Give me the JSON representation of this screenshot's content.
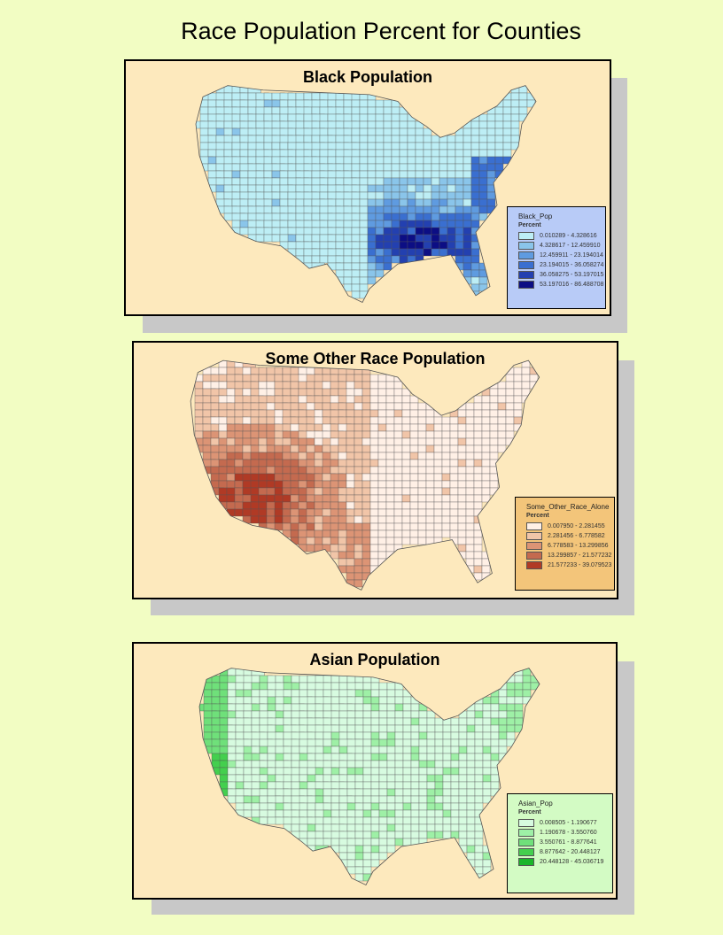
{
  "title": "Race Population Percent for Counties",
  "panels": [
    {
      "title": "Black Population",
      "legend_title": "Black_Pop",
      "legend_subtitle": "Percent",
      "legend_bg": "#b8cbf7",
      "classes": [
        {
          "label": "0.010289 - 4.328616",
          "color": "#bdeef5"
        },
        {
          "label": "4.328617 - 12.459910",
          "color": "#8ac5ea"
        },
        {
          "label": "12.459911 - 23.194014",
          "color": "#5f9be0"
        },
        {
          "label": "23.194015 - 36.058274",
          "color": "#3a6fd0"
        },
        {
          "label": "36.058275 - 53.197015",
          "color": "#2340b0"
        },
        {
          "label": "53.197016 - 86.488708",
          "color": "#0c0e84"
        }
      ]
    },
    {
      "title": "Some Other Race Population",
      "legend_title": "Some_Other_Race_Alone",
      "legend_subtitle": "Percent",
      "legend_bg": "#f3c57a",
      "classes": [
        {
          "label": "0.007950 - 2.281455",
          "color": "#fff0e6"
        },
        {
          "label": "2.281456 - 6.778582",
          "color": "#f1c5a8"
        },
        {
          "label": "6.778583 - 13.299856",
          "color": "#dc9475"
        },
        {
          "label": "13.299857 - 21.577232",
          "color": "#c46a4f"
        },
        {
          "label": "21.577233 - 39.079523",
          "color": "#b03a25"
        }
      ]
    },
    {
      "title": "Asian Population",
      "legend_title": "Asian_Pop",
      "legend_subtitle": "Percent",
      "legend_bg": "#d3fbc4",
      "classes": [
        {
          "label": "0.008505 - 1.190677",
          "color": "#d7fbe0"
        },
        {
          "label": "1.190678 - 3.550760",
          "color": "#9ef0a6"
        },
        {
          "label": "3.550761 - 8.877641",
          "color": "#6fe07a"
        },
        {
          "label": "8.877642 - 20.448127",
          "color": "#44cf4e"
        },
        {
          "label": "20.448128 - 45.036719",
          "color": "#1ab52a"
        }
      ]
    }
  ]
}
